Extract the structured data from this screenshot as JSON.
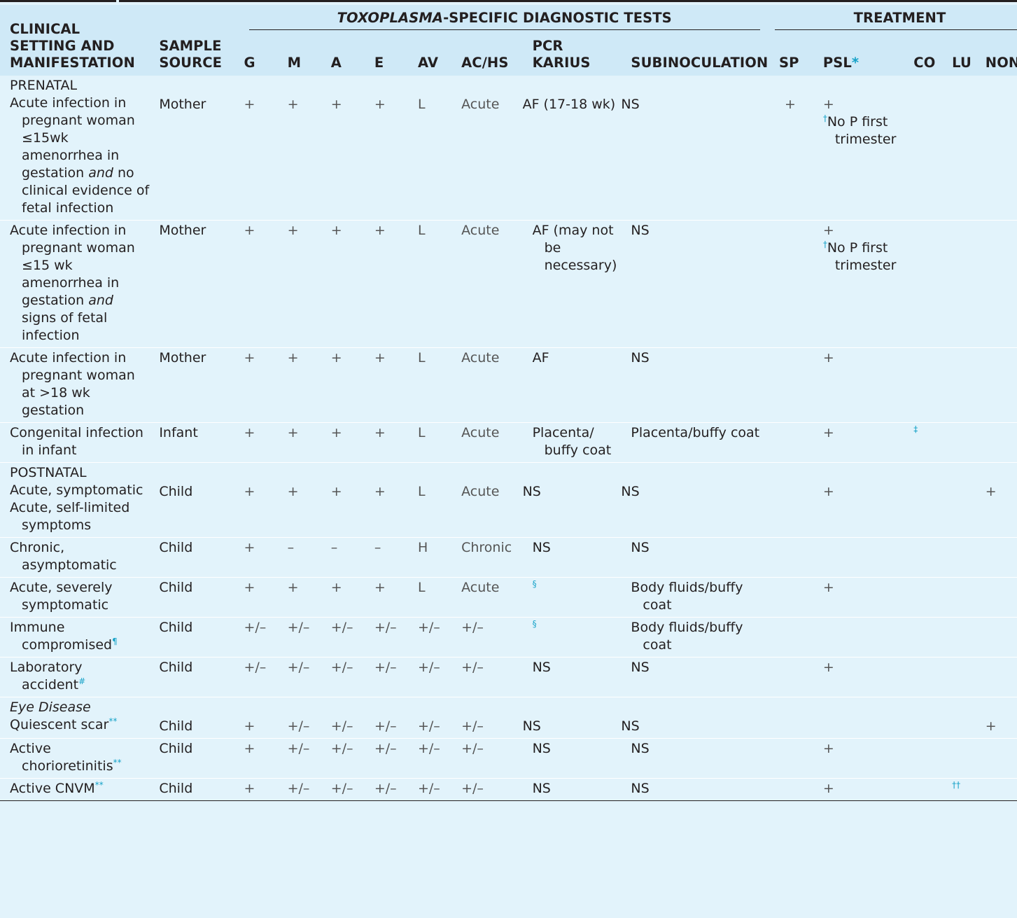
{
  "header": {
    "group_tests_prefix": "TOXOPLASMA",
    "group_tests_suffix": "-SPECIFIC DIAGNOSTIC TESTS",
    "group_treatment": "TREATMENT",
    "col_setting_l1": "CLINICAL",
    "col_setting_l2": "SETTING AND",
    "col_setting_l3": "MANIFESTATION",
    "col_sample_l1": "SAMPLE",
    "col_sample_l2": "SOURCE",
    "g": "G",
    "m": "M",
    "a": "A",
    "e": "E",
    "av": "AV",
    "achs": "AC/HS",
    "pcr_l1": "PCR",
    "pcr_l2": "KARIUS",
    "subinoc": "SUBINOCULATION",
    "sp": "SP",
    "psl": "PSL",
    "psl_ref": "*",
    "co": "CO",
    "lu": "LU",
    "none": "NONE"
  },
  "sections": {
    "prenatal": "PRENATAL",
    "postnatal": "POSTNATAL",
    "eye": "Eye Disease"
  },
  "rows": [
    {
      "setting_a": "Acute infection in pregnant woman ≤15wk amenorrhea in gestation ",
      "setting_it": "and",
      "setting_b": " no clinical evidence of fetal infection",
      "sample": "Mother",
      "g": "+",
      "m": "+",
      "a": "+",
      "e": "+",
      "av": "L",
      "ac": "Acute",
      "pcr": "AF (17-18 wk)",
      "sub": "NS",
      "sp": "+",
      "psl": "+",
      "psl_ref": "†",
      "psl_note": "No P first trimester"
    },
    {
      "setting_a": "Acute infection in pregnant woman ≤15 wk amenorrhea in gestation ",
      "setting_it": "and",
      "setting_b": " signs of fetal infection",
      "sample": "Mother",
      "g": "+",
      "m": "+",
      "a": "+",
      "e": "+",
      "av": "L",
      "ac": "Acute",
      "pcr": "AF (may not be necessary)",
      "sub": "NS",
      "psl": "+",
      "psl_ref": "†",
      "psl_note": "No P first trimester"
    },
    {
      "setting": "Acute infection in pregnant woman at >18 wk gestation",
      "sample": "Mother",
      "g": "+",
      "m": "+",
      "a": "+",
      "e": "+",
      "av": "L",
      "ac": "Acute",
      "pcr": "AF",
      "sub": "NS",
      "psl": "+"
    },
    {
      "setting": "Congenital infection in infant",
      "sample": "Infant",
      "g": "+",
      "m": "+",
      "a": "+",
      "e": "+",
      "av": "L",
      "ac": "Acute",
      "pcr": "Placenta/ buffy coat",
      "sub": "Placenta/buffy coat",
      "psl": "+",
      "co_ref": "‡"
    },
    {
      "setting": "Acute, symptomatic",
      "setting2": "Acute, self-limited symptoms",
      "sample": "Child",
      "g": "+",
      "m": "+",
      "a": "+",
      "e": "+",
      "av": "L",
      "ac": "Acute",
      "pcr": "NS",
      "sub": "NS",
      "psl": "+",
      "none": "+"
    },
    {
      "setting": "Chronic, asymptomatic",
      "sample": "Child",
      "g": "+",
      "m": "–",
      "a": "–",
      "e": "–",
      "av": "H",
      "ac": "Chronic",
      "pcr": "NS",
      "sub": "NS"
    },
    {
      "setting": "Acute, severely symptomatic",
      "sample": "Child",
      "g": "+",
      "m": "+",
      "a": "+",
      "e": "+",
      "av": "L",
      "ac": "Acute",
      "pcr_ref": "§",
      "sub": "Body fluids/buffy coat",
      "psl": "+"
    },
    {
      "setting": "Immune compromised",
      "setting_ref": "¶",
      "sample": "Child",
      "g": "+/–",
      "m": "+/–",
      "a": "+/–",
      "e": "+/–",
      "av": "+/–",
      "ac": "+/–",
      "pcr_ref": "§",
      "sub": "Body fluids/buffy coat"
    },
    {
      "setting": "Laboratory accident",
      "setting_ref": "#",
      "sample": "Child",
      "g": "+/–",
      "m": "+/–",
      "a": "+/–",
      "e": "+/–",
      "av": "+/–",
      "ac": "+/–",
      "pcr": "NS",
      "sub": "NS",
      "psl": "+"
    },
    {
      "setting": "Quiescent scar",
      "setting_ref": "**",
      "sample": "Child",
      "g": "+",
      "m": "+/–",
      "a": "+/–",
      "e": "+/–",
      "av": "+/–",
      "ac": "+/–",
      "pcr": "NS",
      "sub": "NS",
      "none": "+"
    },
    {
      "setting": "Active chorioretinitis",
      "setting_ref": "**",
      "sample": "Child",
      "g": "+",
      "m": "+/–",
      "a": "+/–",
      "e": "+/–",
      "av": "+/–",
      "ac": "+/–",
      "pcr": "NS",
      "sub": "NS",
      "psl": "+"
    },
    {
      "setting": "Active CNVM",
      "setting_ref": "**",
      "sample": "Child",
      "g": "+",
      "m": "+/–",
      "a": "+/–",
      "e": "+/–",
      "av": "+/–",
      "ac": "+/–",
      "pcr": "NS",
      "sub": "NS",
      "psl": "+",
      "lu_ref": "††"
    }
  ]
}
